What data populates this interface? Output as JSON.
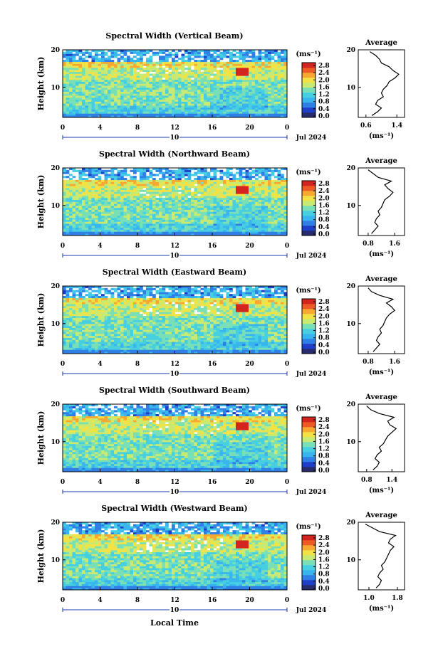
{
  "figure": {
    "month_label": "Jul 2024",
    "xlabel": "Local Time",
    "colorbar_unit": "(ms⁻¹)",
    "colorbar_ticks": [
      "0.0",
      "0.4",
      "0.8",
      "1.2",
      "1.6",
      "2.0",
      "2.4",
      "2.8"
    ],
    "colors": [
      "#282b6e",
      "#1f3fc8",
      "#2f7fe6",
      "#38b5ef",
      "#46cfe0",
      "#79dfb6",
      "#c8ea72",
      "#f3e244",
      "#f7a830",
      "#ee5a25",
      "#d3241f"
    ],
    "avg_title": "Average",
    "avg_xlabel": "(ms⁻¹)"
  },
  "chart_data": [
    {
      "type": "heatmap",
      "title": "Spectral Width (Vertical Beam)",
      "ylabel": "Height (km)",
      "x_ticks": [
        "0",
        "4",
        "8",
        "12",
        "16",
        "20",
        "0"
      ],
      "x_day_label": "10",
      "y_ticks": [
        "20",
        "10"
      ],
      "xlim": [
        0,
        24
      ],
      "ylim": [
        2,
        20
      ],
      "colorbar_range": [
        0.0,
        3.0
      ],
      "average_profile": {
        "x_ticks": [
          "0.6",
          "1.4"
        ],
        "xlim": [
          0.4,
          1.6
        ],
        "height": [
          2.5,
          3.5,
          4.5,
          5.5,
          6.5,
          7.5,
          8.5,
          9.5,
          10.5,
          11.5,
          12.5,
          13.5,
          14.5,
          15.5,
          16.5,
          17.5,
          18.5,
          19.5
        ],
        "value": [
          0.75,
          0.9,
          1.0,
          0.85,
          0.9,
          1.05,
          1.0,
          1.05,
          1.15,
          1.2,
          1.35,
          1.45,
          1.3,
          1.2,
          1.0,
          0.95,
          0.85,
          0.7
        ]
      }
    },
    {
      "type": "heatmap",
      "title": "Spectral Width (Northward Beam)",
      "ylabel": "Height (km)",
      "x_ticks": [
        "0",
        "4",
        "8",
        "12",
        "16",
        "20",
        "0"
      ],
      "x_day_label": "10",
      "y_ticks": [
        "20",
        "10"
      ],
      "xlim": [
        0,
        24
      ],
      "ylim": [
        2,
        20
      ],
      "colorbar_range": [
        0.0,
        3.0
      ],
      "average_profile": {
        "x_ticks": [
          "0.8",
          "1.6"
        ],
        "xlim": [
          0.5,
          1.9
        ],
        "height": [
          2.5,
          3.5,
          4.5,
          5.5,
          6.5,
          7.5,
          8.5,
          9.5,
          10.5,
          11.5,
          12.5,
          13.5,
          14.5,
          15.5,
          16.5,
          17.5,
          18.5,
          19.5
        ],
        "value": [
          0.9,
          1.0,
          1.1,
          1.0,
          1.05,
          1.15,
          1.1,
          1.2,
          1.25,
          1.3,
          1.45,
          1.55,
          1.4,
          1.3,
          1.5,
          1.1,
          0.95,
          0.8
        ]
      }
    },
    {
      "type": "heatmap",
      "title": "Spectral Width (Eastward Beam)",
      "ylabel": "Height (km)",
      "x_ticks": [
        "0",
        "4",
        "8",
        "12",
        "16",
        "20",
        "0"
      ],
      "x_day_label": "10",
      "y_ticks": [
        "20",
        "10"
      ],
      "xlim": [
        0,
        24
      ],
      "ylim": [
        2,
        20
      ],
      "colorbar_range": [
        0.0,
        3.0
      ],
      "average_profile": {
        "x_ticks": [
          "0.8",
          "1.6"
        ],
        "xlim": [
          0.5,
          1.9
        ],
        "height": [
          2.5,
          3.5,
          4.5,
          5.5,
          6.5,
          7.5,
          8.5,
          9.5,
          10.5,
          11.5,
          12.5,
          13.5,
          14.5,
          15.5,
          16.5,
          17.5,
          18.5,
          19.5
        ],
        "value": [
          0.95,
          1.05,
          1.15,
          1.05,
          1.1,
          1.2,
          1.15,
          1.25,
          1.3,
          1.35,
          1.45,
          1.6,
          1.5,
          1.35,
          1.55,
          1.15,
          0.9,
          0.8
        ]
      }
    },
    {
      "type": "heatmap",
      "title": "Spectral Width (Southward Beam)",
      "ylabel": "Height (km)",
      "x_ticks": [
        "0",
        "4",
        "8",
        "12",
        "16",
        "20",
        "0"
      ],
      "x_day_label": "10",
      "y_ticks": [
        "20",
        "10"
      ],
      "xlim": [
        0,
        24
      ],
      "ylim": [
        2,
        20
      ],
      "colorbar_range": [
        0.0,
        3.0
      ],
      "average_profile": {
        "x_ticks": [
          "0.8",
          "1.4"
        ],
        "xlim": [
          0.6,
          1.7
        ],
        "height": [
          2.5,
          3.5,
          4.5,
          5.5,
          6.5,
          7.5,
          8.5,
          9.5,
          10.5,
          11.5,
          12.5,
          13.5,
          14.5,
          15.5,
          16.5,
          17.5,
          18.5,
          19.5
        ],
        "value": [
          0.95,
          1.05,
          1.1,
          1.0,
          1.05,
          1.15,
          1.1,
          1.2,
          1.25,
          1.3,
          1.4,
          1.5,
          1.35,
          1.3,
          1.45,
          1.1,
          0.9,
          0.8
        ]
      }
    },
    {
      "type": "heatmap",
      "title": "Spectral Width (Westward Beam)",
      "ylabel": "Height (km)",
      "x_ticks": [
        "0",
        "4",
        "8",
        "12",
        "16",
        "20",
        "0"
      ],
      "x_day_label": "10",
      "y_ticks": [
        "20",
        "10"
      ],
      "xlim": [
        0,
        24
      ],
      "ylim": [
        2,
        20
      ],
      "colorbar_range": [
        0.0,
        3.0
      ],
      "average_profile": {
        "x_ticks": [
          "1.0",
          "1.8"
        ],
        "xlim": [
          0.7,
          2.0
        ],
        "height": [
          2.5,
          3.5,
          4.5,
          5.5,
          6.5,
          7.5,
          8.5,
          9.5,
          10.5,
          11.5,
          12.5,
          13.5,
          14.5,
          15.5,
          16.5,
          17.5,
          18.5,
          19.5
        ],
        "value": [
          1.2,
          1.3,
          1.35,
          1.25,
          1.3,
          1.4,
          1.35,
          1.45,
          1.5,
          1.55,
          1.6,
          1.7,
          1.55,
          1.6,
          1.75,
          1.3,
          1.1,
          0.9
        ]
      }
    }
  ]
}
